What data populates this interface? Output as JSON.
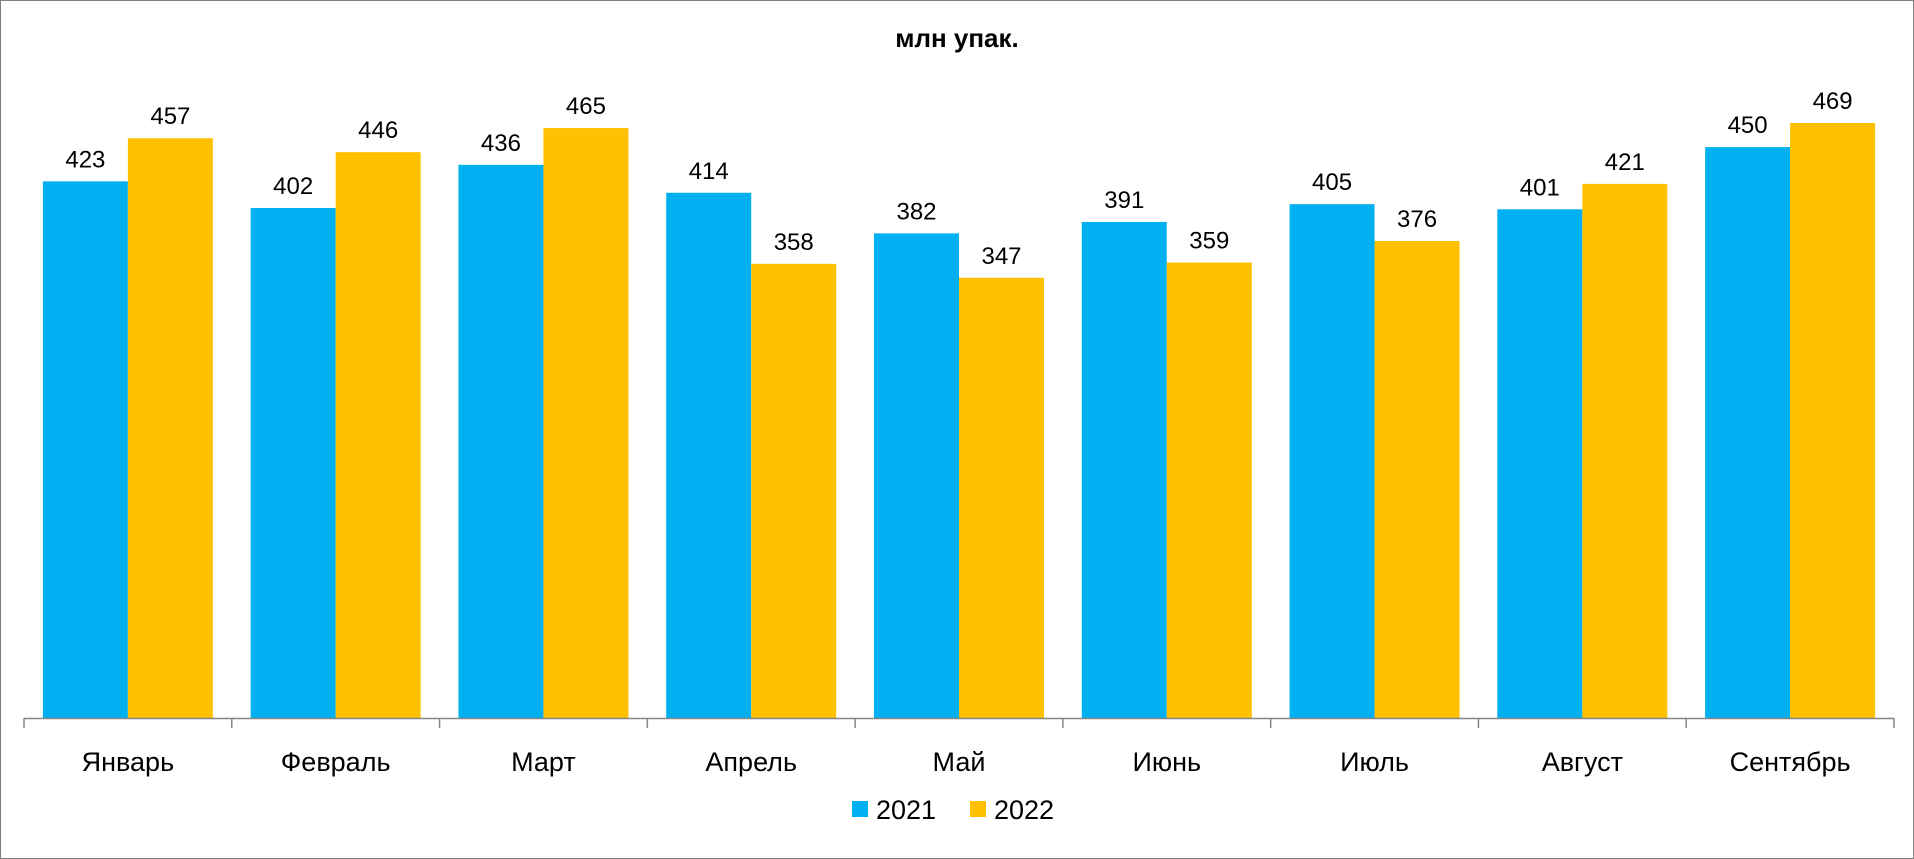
{
  "chart_data": {
    "type": "bar",
    "title": "млн упак.",
    "categories": [
      "Январь",
      "Февраль",
      "Март",
      "Апрель",
      "Май",
      "Июнь",
      "Июль",
      "Август",
      "Сентябрь"
    ],
    "series": [
      {
        "name": "2021",
        "color": "#00b0f0",
        "values": [
          423,
          402,
          436,
          414,
          382,
          391,
          405,
          401,
          450
        ]
      },
      {
        "name": "2022",
        "color": "#ffc000",
        "values": [
          457,
          446,
          465,
          358,
          347,
          359,
          376,
          421,
          469
        ]
      }
    ],
    "ylim": [
      0,
      469
    ],
    "grid": false,
    "legend": "bottom",
    "data_labels": true
  }
}
